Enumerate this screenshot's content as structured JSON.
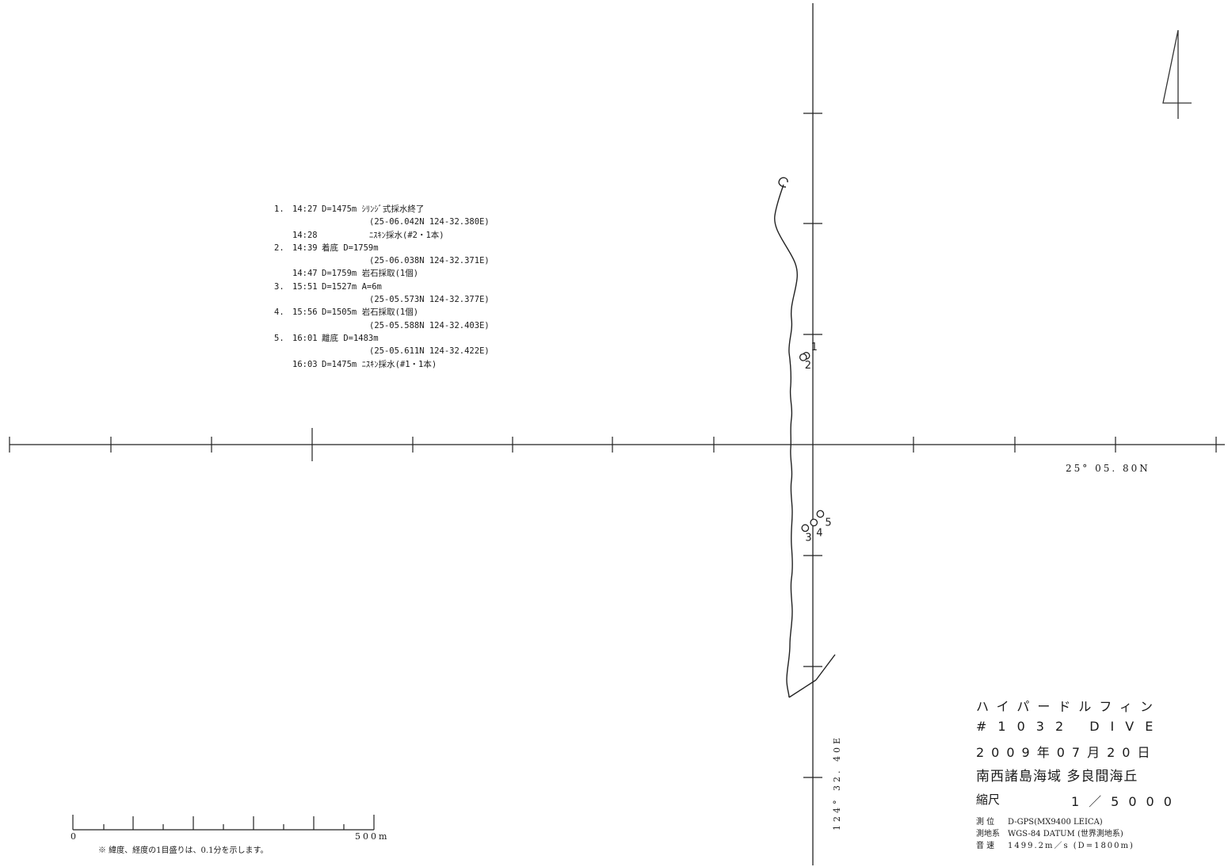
{
  "page_number": "4",
  "latitude_label": "25° 05. 80N",
  "longitude_label": "124° 32. 40E",
  "points": [
    {
      "num": "1",
      "lat": 25.1007,
      "lon": 124.53967
    },
    {
      "num": "2",
      "lat": 25.10063,
      "lon": 124.53952
    },
    {
      "num": "3",
      "lat": 25.09288,
      "lon": 124.53962
    },
    {
      "num": "4",
      "lat": 25.09313,
      "lon": 124.54005
    },
    {
      "num": "5",
      "lat": 25.09352,
      "lon": 124.54037
    }
  ],
  "dive_log": [
    {
      "num": "1.",
      "time": "14:27",
      "text": "D=1475m ｼﾘﾝｼﾞ式採水終了"
    },
    {
      "num": "",
      "time": "",
      "coord": "(25-06.042N 124-32.380E)"
    },
    {
      "num": "",
      "time": "14:28",
      "text": "              ﾆｽｷﾝ採水(#2・1本)"
    },
    {
      "num": "2.",
      "time": "14:39",
      "text": "着底 D=1759m"
    },
    {
      "num": "",
      "time": "",
      "coord": "(25-06.038N 124-32.371E)"
    },
    {
      "num": "",
      "time": "14:47",
      "text": "D=1759m 岩石採取(1個)"
    },
    {
      "num": "3.",
      "time": "15:51",
      "text": "D=1527m A=6m"
    },
    {
      "num": "",
      "time": "",
      "coord": "(25-05.573N 124-32.377E)"
    },
    {
      "num": "4.",
      "time": "15:56",
      "text": "D=1505m 岩石採取(1個)"
    },
    {
      "num": "",
      "time": "",
      "coord": "(25-05.588N 124-32.403E)"
    },
    {
      "num": "5.",
      "time": "16:01",
      "text": "離底 D=1483m"
    },
    {
      "num": "",
      "time": "",
      "coord": "(25-05.611N 124-32.422E)"
    },
    {
      "num": "",
      "time": "16:03",
      "text": "D=1475m ﾆｽｷﾝ採水(#1・1本)"
    }
  ],
  "title_block": {
    "vessel": "ハイパードルフィン",
    "dive": "#1032 DIVE",
    "date": "2009年07月20日",
    "area": "南西諸島海域 多良間海丘",
    "scale_label": "縮尺",
    "scale_value": "1／5000"
  },
  "meta": [
    {
      "key": "測 位",
      "value": "D-GPS(MX9400 LEICA)"
    },
    {
      "key": "測地系",
      "value": "WGS-84 DATUM (世界測地系)"
    },
    {
      "key": "音 速",
      "value": "1499.2m／s (D=1800m)"
    }
  ],
  "scale_bar": {
    "start": "0",
    "end": "500m"
  },
  "footnote": "※ 緯度、経度の1目盛りは、0.1分を示します。"
}
